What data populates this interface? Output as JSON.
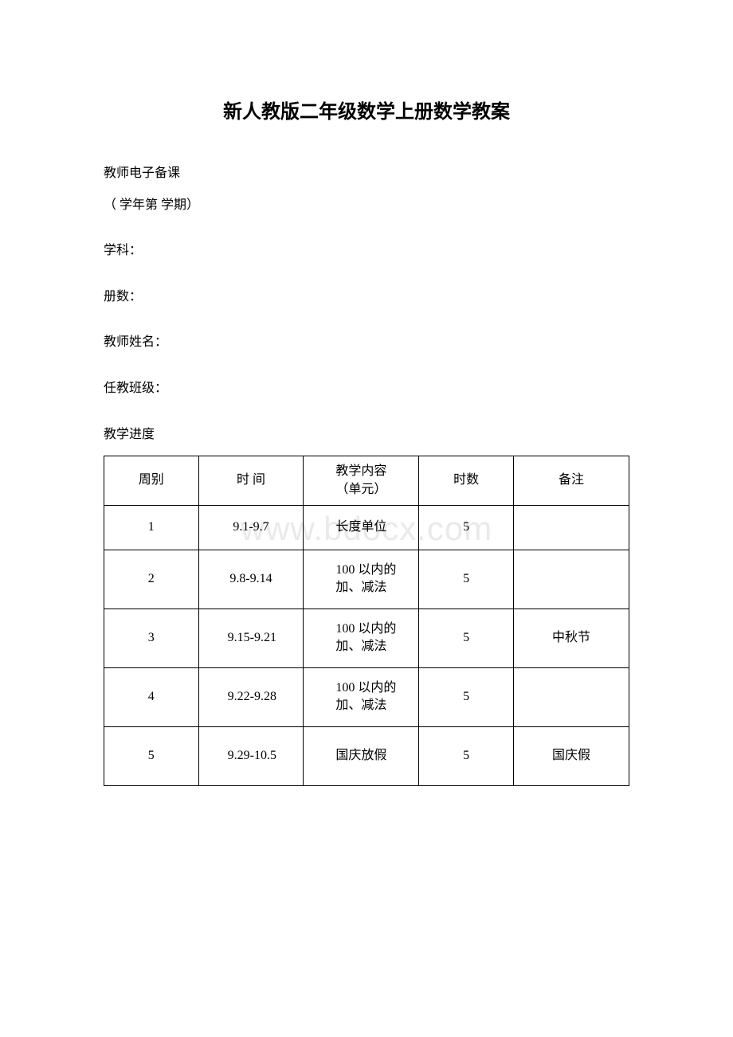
{
  "title": "新人教版二年级数学上册数学教案",
  "header": {
    "line1": "教师电子备课",
    "line2": "（ 学年第 学期）",
    "subject_label": "学科：",
    "volume_label": "册数：",
    "teacher_label": "教师姓名：",
    "class_label": "任教班级：",
    "schedule_label": "教学进度"
  },
  "watermark": "www.bdocx.com",
  "table": {
    "columns": {
      "week": "周别",
      "time": "时 间",
      "content": "教学内容（单元）",
      "hours": "时数",
      "note": "备注"
    },
    "rows": [
      {
        "week": "1",
        "time": "9.1-9.7",
        "content": "长度单位",
        "hours": "5",
        "note": ""
      },
      {
        "week": "2",
        "time": "9.8-9.14",
        "content": "100 以内的加、减法",
        "hours": "5",
        "note": ""
      },
      {
        "week": "3",
        "time": "9.15-9.21",
        "content": "100 以内的加、减法",
        "hours": "5",
        "note": "中秋节"
      },
      {
        "week": "4",
        "time": "9.22-9.28",
        "content": "100 以内的加、减法",
        "hours": "5",
        "note": ""
      },
      {
        "week": "5",
        "time": "9.29-10.5",
        "content": "国庆放假",
        "hours": "5",
        "note": "国庆假"
      }
    ],
    "border_color": "#000000",
    "font_size": 16
  }
}
